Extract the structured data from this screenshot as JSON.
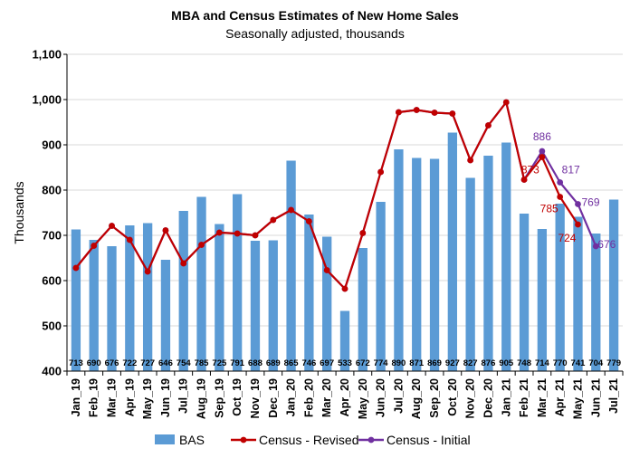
{
  "colors": {
    "bas": "#5b9bd5",
    "census_revised": "#c00000",
    "census_initial": "#7030a0",
    "grid": "#d9d9d9"
  },
  "chart_data": {
    "type": "bar",
    "title": "MBA and Census Estimates of New Home Sales",
    "subtitle": "Seasonally adjusted, thousands",
    "ylabel": "Thousands",
    "ylim": [
      400,
      1100
    ],
    "yticks": [
      "400",
      "500",
      "600",
      "700",
      "800",
      "900",
      "1,000",
      "1,100"
    ],
    "ytick_values": [
      400,
      500,
      600,
      700,
      800,
      900,
      1000,
      1100
    ],
    "grid": true,
    "legend_position": "bottom",
    "categories": [
      "Jan_19",
      "Feb_19",
      "Mar_19",
      "Apr_19",
      "May_19",
      "Jun_19",
      "Jul_19",
      "Aug_19",
      "Sep_19",
      "Oct_19",
      "Nov_19",
      "Dec_19",
      "Jan_20",
      "Feb_20",
      "Mar_20",
      "Apr_20",
      "May_20",
      "Jun_20",
      "Jul_20",
      "Aug_20",
      "Sep_20",
      "Oct_20",
      "Nov_20",
      "Dec_20",
      "Jan_21",
      "Feb_21",
      "Mar_21",
      "Apr_21",
      "May_21",
      "Jun_21",
      "Jul_21"
    ],
    "series": [
      {
        "name": "BAS",
        "kind": "bar",
        "values": [
          713,
          690,
          676,
          722,
          727,
          646,
          754,
          785,
          725,
          791,
          688,
          689,
          865,
          746,
          697,
          533,
          672,
          774,
          890,
          871,
          869,
          927,
          827,
          876,
          905,
          748,
          714,
          770,
          741,
          704,
          779
        ],
        "labels": [
          "713",
          "690",
          "676",
          "722",
          "727",
          "646",
          "754",
          "785",
          "725",
          "791",
          "688",
          "689",
          "865",
          "746",
          "697",
          "533",
          "672",
          "774",
          "890",
          "871",
          "869",
          "927",
          "827",
          "876",
          "905",
          "748",
          "714",
          "770",
          "741",
          "704",
          "779"
        ]
      },
      {
        "name": "Census - Revised",
        "kind": "line",
        "values": [
          628,
          677,
          721,
          690,
          620,
          711,
          638,
          679,
          706,
          704,
          700,
          734,
          756,
          731,
          623,
          582,
          705,
          840,
          972,
          977,
          971,
          969,
          866,
          943,
          994,
          823,
          873,
          785,
          724,
          null,
          null
        ],
        "annotations": [
          {
            "index": 26,
            "text": "873"
          },
          {
            "index": 27,
            "text": "785"
          },
          {
            "index": 28,
            "text": "724"
          }
        ]
      },
      {
        "name": "Census - Initial",
        "kind": "line",
        "values": [
          628,
          677,
          721,
          690,
          620,
          711,
          638,
          679,
          706,
          704,
          700,
          734,
          756,
          731,
          623,
          582,
          705,
          840,
          972,
          977,
          971,
          969,
          866,
          943,
          994,
          823,
          886,
          817,
          769,
          676,
          null
        ],
        "annotations": [
          {
            "index": 26,
            "text": "886"
          },
          {
            "index": 27,
            "text": "817"
          },
          {
            "index": 28,
            "text": "769"
          },
          {
            "index": 29,
            "text": "676"
          }
        ]
      }
    ]
  }
}
